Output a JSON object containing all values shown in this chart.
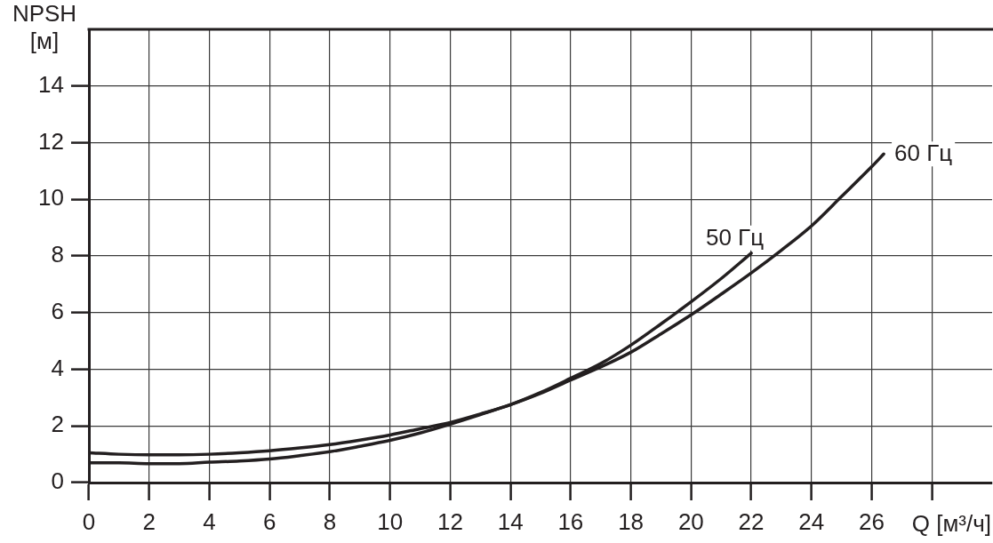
{
  "chart_data": {
    "type": "line",
    "xlabel": "Q [м³/ч]",
    "ylabel": "NPSH [м]",
    "xlim": [
      0,
      30
    ],
    "ylim": [
      0,
      16
    ],
    "xticks": [
      0,
      2,
      4,
      6,
      8,
      10,
      12,
      14,
      16,
      18,
      20,
      22,
      24,
      26,
      {
        "value": 28,
        "label": null
      }
    ],
    "yticks": [
      0,
      2,
      4,
      6,
      8,
      10,
      12,
      14
    ],
    "grid": true,
    "legend": false,
    "marker": "none",
    "line_style": "solid",
    "series": [
      {
        "name": "50 Гц",
        "color": "#231f20",
        "x": [
          0,
          1,
          2,
          3,
          4,
          5,
          6,
          7,
          8,
          9,
          10,
          11,
          12,
          13,
          14,
          15,
          16,
          17,
          18,
          19,
          20,
          21,
          22
        ],
        "values": [
          1.05,
          1.0,
          0.98,
          0.98,
          1.0,
          1.05,
          1.12,
          1.22,
          1.34,
          1.5,
          1.68,
          1.9,
          2.12,
          2.42,
          2.75,
          3.18,
          3.68,
          4.2,
          4.85,
          5.6,
          6.38,
          7.2,
          8.1
        ]
      },
      {
        "name": "60 Гц",
        "color": "#231f20",
        "x": [
          0,
          1,
          2,
          3,
          4,
          5,
          6,
          7,
          8,
          9,
          10,
          11,
          12,
          13,
          14,
          15,
          16,
          17,
          18,
          19,
          20,
          21,
          22,
          23,
          24,
          25,
          26,
          26.4
        ],
        "values": [
          0.7,
          0.7,
          0.67,
          0.67,
          0.72,
          0.76,
          0.83,
          0.95,
          1.09,
          1.28,
          1.49,
          1.75,
          2.06,
          2.4,
          2.75,
          3.15,
          3.62,
          4.08,
          4.6,
          5.25,
          5.92,
          6.65,
          7.4,
          8.2,
          9.06,
          10.1,
          11.15,
          11.6
        ]
      }
    ]
  }
}
